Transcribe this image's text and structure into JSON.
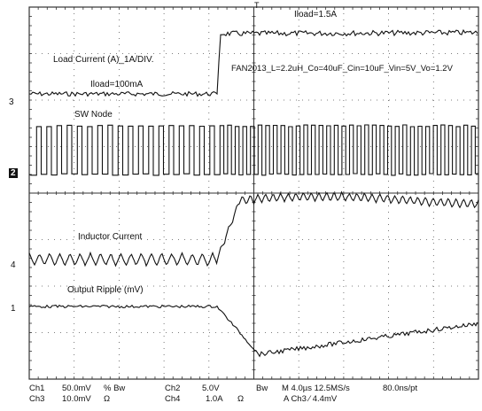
{
  "annotations": {
    "iload_high": "Iload=1.5A",
    "load_current": "Load Current (A)_1A/DIV.",
    "iload_low": "Iload=100mA",
    "conditions": "FAN2013_L=2.2uH_Co=40uF_Cin=10uF_Vin=5V_Vo=1.2V",
    "sw_node": "SW Node",
    "inductor_current": "Inductor Current",
    "output_ripple": "Output Ripple (mV)"
  },
  "markers": {
    "ch3": "3",
    "ch2": "2",
    "ch4": "4",
    "ch1": "1",
    "trigger": "T"
  },
  "footer": {
    "ch1_name": "Ch1",
    "ch1_scale": "50.0mV",
    "ch1_coupling": "% Bw",
    "ch3_name": "Ch3",
    "ch3_scale": "10.0mV",
    "ch3_imp": "Ω",
    "ch2_name": "Ch2",
    "ch2_scale": "5.0V",
    "ch4_name": "Ch4",
    "ch4_scale": "1.0A",
    "ch4_imp": "Ω",
    "bw": "Bw",
    "timebase": "M 4.0µs 12.5MS/s",
    "record": "80.0ns/pt",
    "trigger": "A  Ch3  ∕  4.4mV"
  },
  "colors": {
    "trace": "#111111",
    "grid": "#444444",
    "background": "#ffffff"
  }
}
